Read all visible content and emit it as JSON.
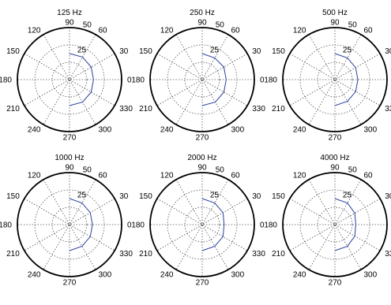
{
  "chart_data": [
    {
      "type": "polar",
      "title": "125 Hz",
      "radial_ticks": [
        "25",
        "50"
      ],
      "angle_ticks": [
        "0",
        "30",
        "60",
        "90",
        "120",
        "150",
        "180",
        "210",
        "240",
        "270",
        "300",
        "330"
      ],
      "rlim": [
        0,
        50
      ],
      "grid": true,
      "series": [
        {
          "color": "#2a3f9e",
          "theta": [
            -90,
            -60,
            -30,
            0,
            30,
            60,
            90
          ],
          "r": [
            25,
            25,
            24,
            23,
            24,
            25,
            25
          ]
        }
      ]
    },
    {
      "type": "polar",
      "title": "250 Hz",
      "radial_ticks": [
        "25",
        "50"
      ],
      "angle_ticks": [
        "0",
        "30",
        "60",
        "90",
        "120",
        "150",
        "180",
        "210",
        "240",
        "270",
        "300",
        "330"
      ],
      "rlim": [
        0,
        50
      ],
      "grid": true,
      "series": [
        {
          "color": "#2a3f9e",
          "theta": [
            -90,
            -60,
            -30,
            0,
            30,
            60,
            90
          ],
          "r": [
            25,
            25,
            24,
            23,
            24,
            24,
            25
          ]
        }
      ]
    },
    {
      "type": "polar",
      "title": "500 Hz",
      "radial_ticks": [
        "25",
        "50"
      ],
      "angle_ticks": [
        "0",
        "30",
        "60",
        "90",
        "120",
        "150",
        "180",
        "210",
        "240",
        "270",
        "300",
        "330"
      ],
      "rlim": [
        0,
        50
      ],
      "grid": true,
      "series": [
        {
          "color": "#2a3f9e",
          "theta": [
            -90,
            -60,
            -30,
            0,
            30,
            60,
            90
          ],
          "r": [
            25,
            24,
            23,
            22,
            23,
            24,
            25
          ]
        }
      ]
    },
    {
      "type": "polar",
      "title": "1000 Hz",
      "radial_ticks": [
        "25",
        "50"
      ],
      "angle_ticks": [
        "0",
        "30",
        "60",
        "90",
        "120",
        "150",
        "180",
        "210",
        "240",
        "270",
        "300",
        "330"
      ],
      "rlim": [
        0,
        50
      ],
      "grid": true,
      "series": [
        {
          "color": "#2a3f9e",
          "theta": [
            -90,
            -60,
            -30,
            0,
            30,
            60,
            90
          ],
          "r": [
            25,
            24,
            23,
            22,
            23,
            24,
            25
          ]
        }
      ]
    },
    {
      "type": "polar",
      "title": "2000 Hz",
      "radial_ticks": [
        "25",
        "50"
      ],
      "angle_ticks": [
        "0",
        "30",
        "60",
        "90",
        "120",
        "150",
        "180",
        "210",
        "240",
        "270",
        "300",
        "330"
      ],
      "rlim": [
        0,
        50
      ],
      "grid": true,
      "series": [
        {
          "color": "#2a3f9e",
          "theta": [
            -90,
            -60,
            -30,
            0,
            30,
            60,
            90
          ],
          "r": [
            25,
            24,
            23,
            21,
            23,
            24,
            25
          ]
        }
      ]
    },
    {
      "type": "polar",
      "title": "4000 Hz",
      "radial_ticks": [
        "25",
        "50"
      ],
      "angle_ticks": [
        "0",
        "30",
        "60",
        "90",
        "120",
        "150",
        "180",
        "210",
        "240",
        "270",
        "300",
        "330"
      ],
      "rlim": [
        0,
        50
      ],
      "grid": true,
      "series": [
        {
          "color": "#2a3f9e",
          "theta": [
            -90,
            -60,
            -30,
            0,
            30,
            60,
            90
          ],
          "r": [
            25,
            24,
            22,
            20,
            22,
            24,
            25
          ]
        }
      ]
    }
  ]
}
